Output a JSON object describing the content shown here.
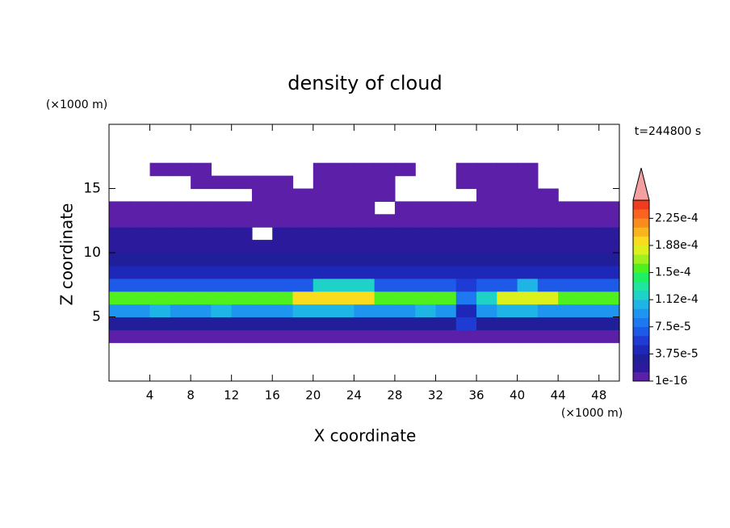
{
  "chart_data": {
    "type": "contour",
    "title": "density of cloud",
    "xlabel": "X coordinate",
    "ylabel": "Z coordinate",
    "xunit": "(×1000 m)",
    "yunit": "(×1000 m)",
    "time_label": "t=244800 s",
    "xlim": [
      0,
      50
    ],
    "ylim": [
      0,
      20
    ],
    "xticks": [
      4,
      8,
      12,
      16,
      20,
      24,
      28,
      32,
      36,
      40,
      44,
      48
    ],
    "yticks": [
      5,
      10,
      15
    ],
    "levels": [
      1e-16,
      1.25e-05,
      2.5e-05,
      3.75e-05,
      5e-05,
      6.25e-05,
      7.5e-05,
      8.75e-05,
      0.0001,
      0.0001125,
      0.000125,
      0.0001375,
      0.00015,
      0.0001625,
      0.000175,
      0.0001875,
      0.0002,
      0.0002125,
      0.000225,
      0.0002375,
      0.00025
    ],
    "colors": [
      "#5b1fa8",
      "#2c1a9c",
      "#201e98",
      "#1e28b8",
      "#1e3cd4",
      "#1e5ae8",
      "#1e78f0",
      "#1e96f0",
      "#1eb4e6",
      "#1ed2c8",
      "#1ee6a0",
      "#1ef064",
      "#50f01e",
      "#a0f01e",
      "#dcf01e",
      "#fadc1e",
      "#fab41e",
      "#fa8c1e",
      "#fa641e",
      "#f03c1e"
    ],
    "extend_color": "#f4a0a0",
    "colorbar_ticks": [
      {
        "value": 1e-16,
        "label": "1e-16"
      },
      {
        "value": 3.75e-05,
        "label": "3.75e-5"
      },
      {
        "value": 7.5e-05,
        "label": "7.5e-5"
      },
      {
        "value": 0.0001125,
        "label": "1.12e-4"
      },
      {
        "value": 0.00015,
        "label": "1.5e-4"
      },
      {
        "value": 0.0001875,
        "label": "1.88e-4"
      },
      {
        "value": 0.000225,
        "label": "2.25e-4"
      }
    ],
    "x": [
      1,
      3,
      5,
      7,
      9,
      11,
      13,
      15,
      17,
      19,
      21,
      23,
      25,
      27,
      29,
      31,
      33,
      35,
      37,
      39,
      41,
      43,
      45,
      47,
      49
    ],
    "y": [
      3.5,
      4.5,
      5.5,
      6.5,
      7.5,
      8.5,
      9.5,
      10.5,
      11.5,
      12.5,
      13.5,
      14.5,
      15.5,
      16.5
    ],
    "z": [
      [
        5e-06,
        5e-06,
        5e-06,
        5e-06,
        5e-06,
        5e-06,
        5e-06,
        5e-06,
        5e-06,
        5e-06,
        5e-06,
        5e-06,
        5e-06,
        5e-06,
        5e-06,
        5e-06,
        5e-06,
        5e-06,
        5e-06,
        5e-06,
        5e-06,
        5e-06,
        5e-06,
        5e-06,
        5e-06
      ],
      [
        3e-05,
        3e-05,
        3e-05,
        3e-05,
        3e-05,
        3e-05,
        3e-05,
        3e-05,
        3e-05,
        3e-05,
        3e-05,
        3e-05,
        3e-05,
        3e-05,
        3e-05,
        3e-05,
        3e-05,
        6e-05,
        3e-05,
        3e-05,
        3e-05,
        3e-05,
        3e-05,
        3e-05,
        3e-05
      ],
      [
        9e-05,
        9e-05,
        0.00011,
        9e-05,
        9e-05,
        0.00011,
        9e-05,
        9e-05,
        9e-05,
        0.00011,
        0.00011,
        0.00011,
        9e-05,
        9e-05,
        9e-05,
        0.00011,
        9e-05,
        4e-05,
        9e-05,
        0.00011,
        0.00011,
        9e-05,
        9e-05,
        9e-05,
        9e-05
      ],
      [
        0.00015,
        0.00015,
        0.00016,
        0.00016,
        0.00016,
        0.00016,
        0.00016,
        0.00016,
        0.00016,
        0.00019,
        0.00019,
        0.00019,
        0.00019,
        0.00016,
        0.00016,
        0.00016,
        0.00016,
        8e-05,
        0.00012,
        0.00018,
        0.00018,
        0.00018,
        0.00015,
        0.00015,
        0.00015
      ],
      [
        7e-05,
        7e-05,
        7e-05,
        7e-05,
        7e-05,
        7e-05,
        7e-05,
        7e-05,
        7e-05,
        7e-05,
        0.00012,
        0.00012,
        0.00012,
        7e-05,
        7e-05,
        7e-05,
        7e-05,
        5e-05,
        7e-05,
        7e-05,
        0.0001,
        7e-05,
        7e-05,
        7e-05,
        7e-05
      ],
      [
        4e-05,
        4e-05,
        4e-05,
        4e-05,
        4e-05,
        4e-05,
        4e-05,
        4e-05,
        4e-05,
        4e-05,
        4e-05,
        4e-05,
        4e-05,
        4e-05,
        4e-05,
        4e-05,
        4e-05,
        4e-05,
        4e-05,
        4e-05,
        4e-05,
        4e-05,
        4e-05,
        4e-05,
        4e-05
      ],
      [
        2.8e-05,
        2.8e-05,
        2.8e-05,
        2.8e-05,
        2.8e-05,
        2.8e-05,
        2.8e-05,
        2.8e-05,
        2.8e-05,
        2.8e-05,
        2.8e-05,
        2.8e-05,
        2.8e-05,
        2.8e-05,
        2.8e-05,
        2.8e-05,
        2.8e-05,
        2.8e-05,
        2.8e-05,
        2.8e-05,
        2.8e-05,
        2.8e-05,
        2.8e-05,
        2.8e-05,
        2.8e-05
      ],
      [
        2e-05,
        2e-05,
        2e-05,
        2e-05,
        2e-05,
        2e-05,
        2e-05,
        2e-05,
        2e-05,
        2e-05,
        2e-05,
        2e-05,
        2e-05,
        2e-05,
        2e-05,
        2e-05,
        2e-05,
        2e-05,
        2e-05,
        2e-05,
        2e-05,
        2e-05,
        2e-05,
        2e-05,
        2e-05
      ],
      [
        1.4e-05,
        1.4e-05,
        1.4e-05,
        1.4e-05,
        1.4e-05,
        1.4e-05,
        1.4e-05,
        null,
        1.4e-05,
        1.4e-05,
        1.4e-05,
        1.4e-05,
        1.4e-05,
        1.4e-05,
        1.4e-05,
        1.4e-05,
        1.4e-05,
        1.4e-05,
        1.4e-05,
        1.4e-05,
        1.4e-05,
        1.4e-05,
        1.4e-05,
        1.4e-05,
        1.4e-05
      ],
      [
        5e-06,
        5e-06,
        5e-06,
        5e-06,
        5e-06,
        5e-06,
        5e-06,
        5e-06,
        5e-06,
        5e-06,
        5e-06,
        5e-06,
        5e-06,
        5e-06,
        5e-06,
        5e-06,
        5e-06,
        5e-06,
        5e-06,
        5e-06,
        5e-06,
        5e-06,
        5e-06,
        5e-06,
        5e-06
      ],
      [
        5e-06,
        5e-06,
        5e-06,
        5e-06,
        5e-06,
        5e-06,
        5e-06,
        5e-06,
        5e-06,
        5e-06,
        5e-06,
        5e-06,
        5e-06,
        null,
        5e-06,
        5e-06,
        5e-06,
        5e-06,
        5e-06,
        5e-06,
        5e-06,
        5e-06,
        5e-06,
        5e-06,
        5e-06
      ],
      [
        null,
        null,
        null,
        null,
        null,
        null,
        null,
        5e-06,
        5e-06,
        5e-06,
        5e-06,
        5e-06,
        5e-06,
        5e-06,
        null,
        null,
        null,
        null,
        5e-06,
        5e-06,
        5e-06,
        5e-06,
        null,
        null,
        null
      ],
      [
        null,
        null,
        null,
        null,
        5e-06,
        5e-06,
        5e-06,
        5e-06,
        5e-06,
        null,
        5e-06,
        5e-06,
        5e-06,
        5e-06,
        null,
        null,
        null,
        5e-06,
        5e-06,
        5e-06,
        5e-06,
        null,
        null,
        null,
        null
      ],
      [
        null,
        null,
        5e-06,
        5e-06,
        5e-06,
        null,
        null,
        null,
        null,
        null,
        5e-06,
        5e-06,
        5e-06,
        5e-06,
        5e-06,
        null,
        null,
        5e-06,
        5e-06,
        5e-06,
        5e-06,
        null,
        null,
        null,
        null
      ]
    ]
  }
}
